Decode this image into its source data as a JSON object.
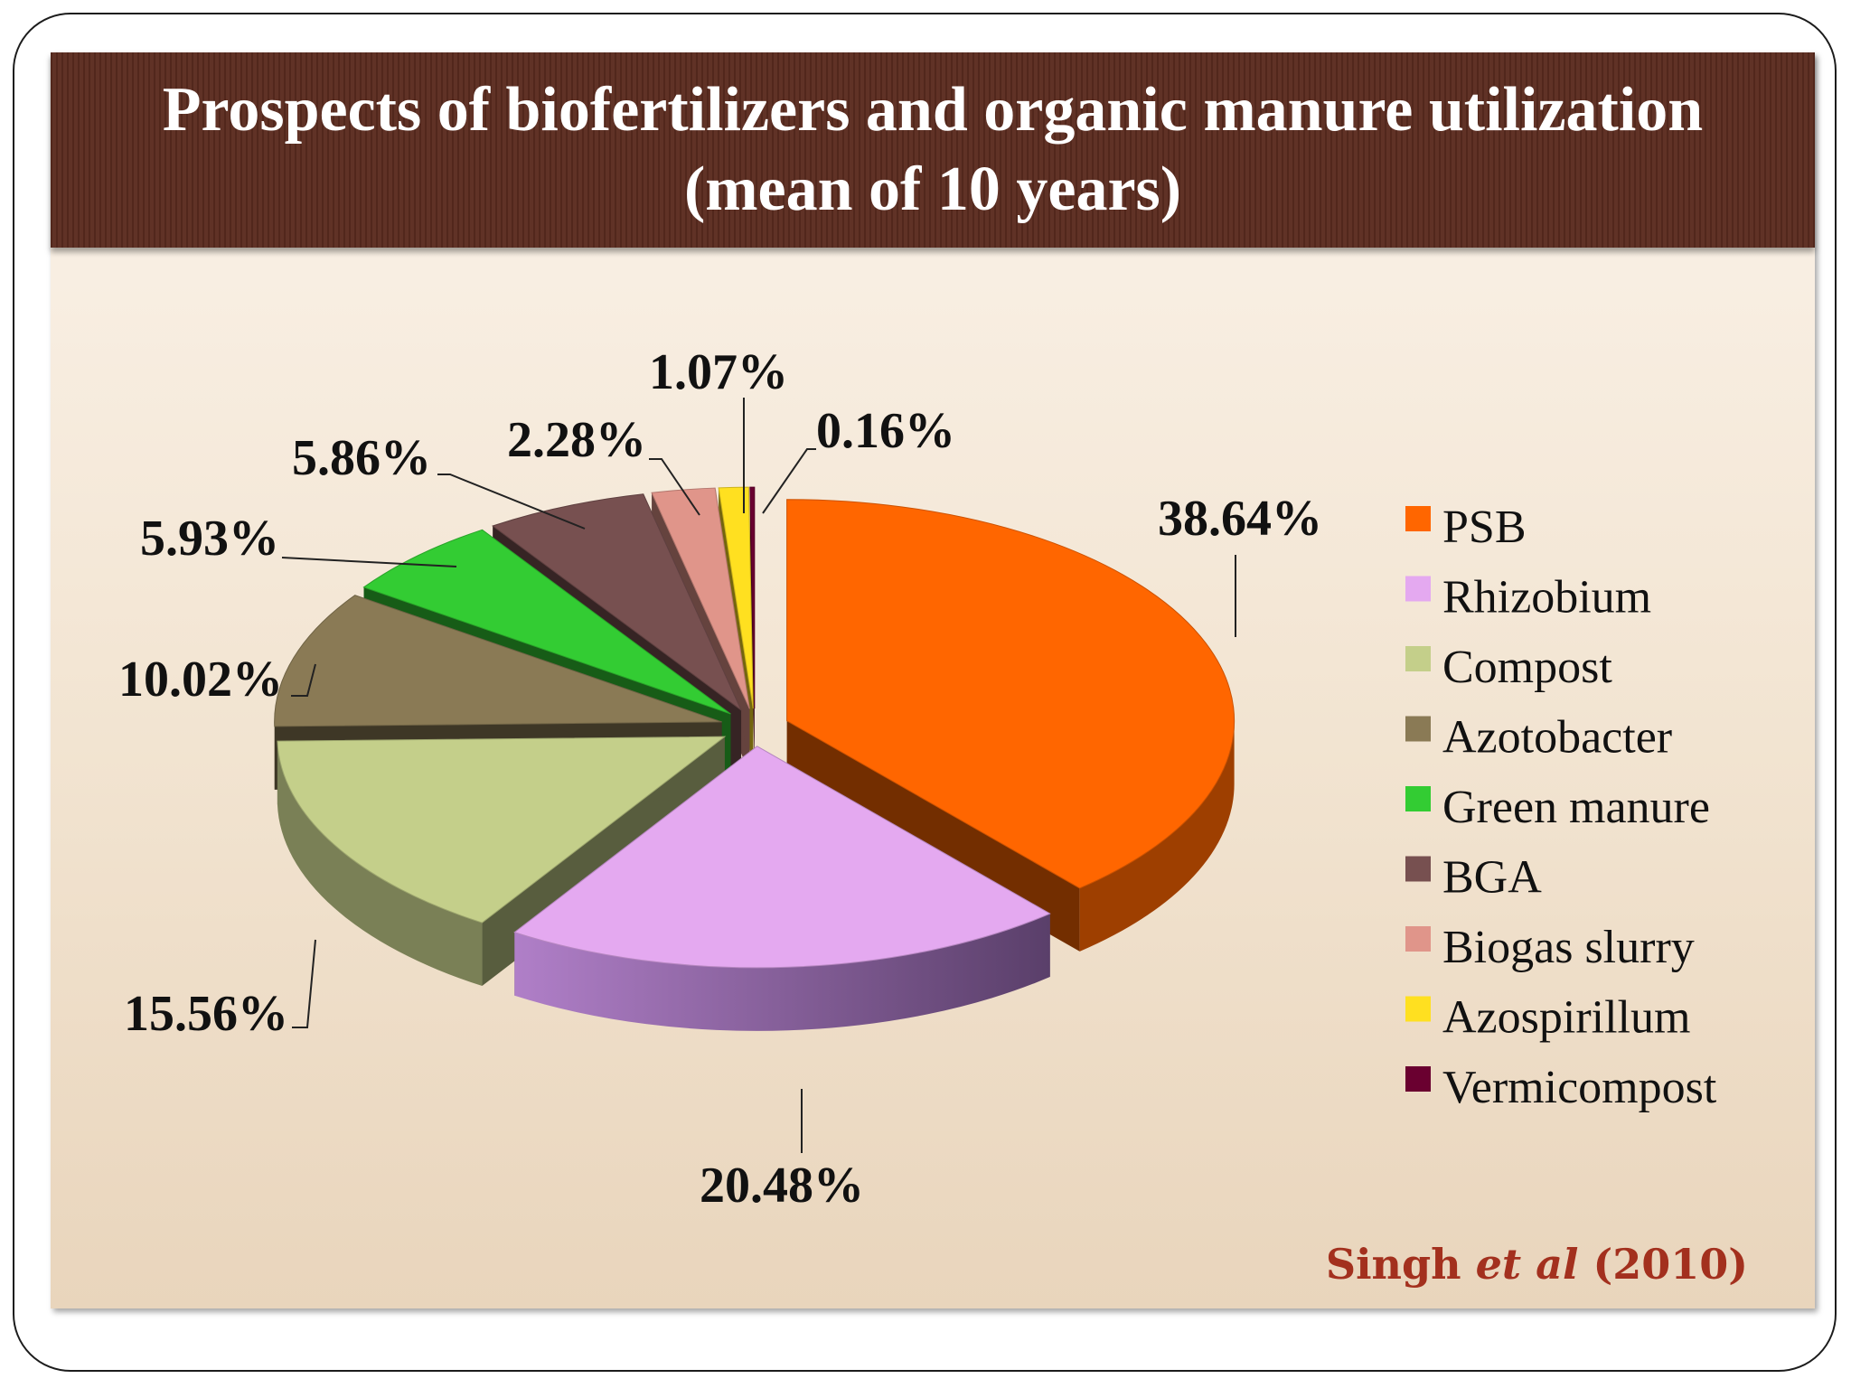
{
  "title": {
    "line1": "Prospects  of biofertilizers and organic manure utilization",
    "line2": "(mean of 10 years)"
  },
  "citation": {
    "author": "Singh",
    "etal": "et al",
    "year": "(2010)"
  },
  "chart_data": {
    "type": "pie",
    "title": "Prospects  of biofertilizers and organic manure utilization (mean of 10 years)",
    "unit": "%",
    "legend_position": "right",
    "slices": [
      {
        "name": "PSB",
        "value": 38.64,
        "label": "38.64%",
        "color": "#ff6600"
      },
      {
        "name": "Rhizobium",
        "value": 20.48,
        "label": "20.48%",
        "color": "#e4a9f0"
      },
      {
        "name": "Compost",
        "value": 15.56,
        "label": "15.56%",
        "color": "#c4cf8a"
      },
      {
        "name": "Azotobacter",
        "value": 10.02,
        "label": "10.02%",
        "color": "#8a7a55"
      },
      {
        "name": "Green manure",
        "value": 5.93,
        "label": "5.93%",
        "color": "#33cc33"
      },
      {
        "name": "BGA",
        "value": 5.86,
        "label": "5.86%",
        "color": "#775050"
      },
      {
        "name": "Biogas slurry",
        "value": 2.28,
        "label": "2.28%",
        "color": "#e0958a"
      },
      {
        "name": "Azospirillum",
        "value": 1.07,
        "label": "1.07%",
        "color": "#ffe020"
      },
      {
        "name": "Vermicompost",
        "value": 0.16,
        "label": "0.16%",
        "color": "#6a0030"
      }
    ]
  }
}
